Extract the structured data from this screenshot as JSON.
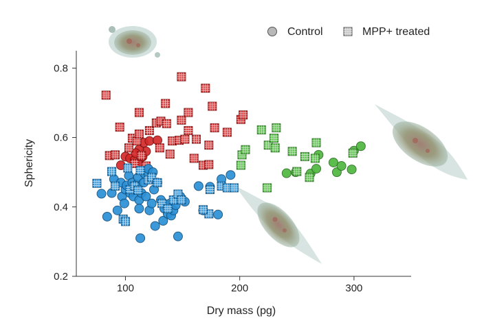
{
  "chart_data": {
    "type": "scatter",
    "title": "",
    "xlabel": "Dry mass (pg)",
    "ylabel": "Sphericity",
    "xlim": [
      57,
      350
    ],
    "ylim": [
      0.2,
      0.85
    ],
    "xticks": [
      100,
      200,
      300
    ],
    "yticks": [
      0.2,
      0.4,
      0.6,
      0.8
    ],
    "xtick_labels": [
      "100",
      "200",
      "300"
    ],
    "ytick_labels": [
      "0.2",
      "0.4",
      "0.6",
      "0.8"
    ],
    "grid": false,
    "legend": {
      "position": "top-right",
      "entries": [
        {
          "label": "Control",
          "marker": "circle"
        },
        {
          "label": "MPP+ treated",
          "marker": "hatched-square"
        }
      ]
    },
    "colors": {
      "red": "#d42a2a",
      "blue": "#2b90d6",
      "green": "#4fb83f",
      "legend_gray": "#b8b8b8"
    },
    "series": [
      {
        "name": "Control (red cluster)",
        "marker": "circle",
        "color": "red",
        "points": [
          [
            100,
            0.545
          ],
          [
            104,
            0.54
          ],
          [
            108,
            0.535
          ],
          [
            112,
            0.528
          ],
          [
            115,
            0.545
          ],
          [
            118,
            0.56
          ],
          [
            112,
            0.565
          ],
          [
            116,
            0.585
          ],
          [
            121,
            0.59
          ],
          [
            128,
            0.592
          ],
          [
            109,
            0.555
          ],
          [
            96,
            0.52
          ]
        ]
      },
      {
        "name": "MPP+ treated (red cluster)",
        "marker": "square",
        "color": "red",
        "points": [
          [
            83,
            0.722
          ],
          [
            86,
            0.548
          ],
          [
            91,
            0.55
          ],
          [
            95,
            0.63
          ],
          [
            103,
            0.57
          ],
          [
            106,
            0.598
          ],
          [
            110,
            0.59
          ],
          [
            108,
            0.525
          ],
          [
            112,
            0.672
          ],
          [
            112,
            0.61
          ],
          [
            114,
            0.548
          ],
          [
            118,
            0.518
          ],
          [
            121,
            0.62
          ],
          [
            127,
            0.642
          ],
          [
            130,
            0.57
          ],
          [
            131,
            0.647
          ],
          [
            135,
            0.698
          ],
          [
            136,
            0.64
          ],
          [
            141,
            0.59
          ],
          [
            139,
            0.552
          ],
          [
            147,
            0.592
          ],
          [
            152,
            0.595
          ],
          [
            149,
            0.65
          ],
          [
            149,
            0.775
          ],
          [
            155,
            0.62
          ],
          [
            155,
            0.672
          ],
          [
            160,
            0.54
          ],
          [
            162,
            0.595
          ],
          [
            168,
            0.52
          ],
          [
            173,
            0.522
          ],
          [
            170,
            0.742
          ],
          [
            173,
            0.578
          ],
          [
            176,
            0.69
          ],
          [
            178,
            0.628
          ],
          [
            189,
            0.615
          ],
          [
            201,
            0.652
          ],
          [
            203,
            0.665
          ]
        ]
      },
      {
        "name": "Control (blue cluster)",
        "marker": "circle",
        "color": "blue",
        "points": [
          [
            79,
            0.438
          ],
          [
            84,
            0.372
          ],
          [
            88,
            0.44
          ],
          [
            90,
            0.48
          ],
          [
            93,
            0.39
          ],
          [
            96,
            0.47
          ],
          [
            97,
            0.43
          ],
          [
            99,
            0.41
          ],
          [
            100,
            0.45
          ],
          [
            101,
            0.462
          ],
          [
            103,
            0.49
          ],
          [
            104,
            0.44
          ],
          [
            106,
            0.47
          ],
          [
            107,
            0.43
          ],
          [
            108,
            0.45
          ],
          [
            110,
            0.465
          ],
          [
            111,
            0.485
          ],
          [
            112,
            0.42
          ],
          [
            112,
            0.395
          ],
          [
            113,
            0.31
          ],
          [
            114,
            0.44
          ],
          [
            116,
            0.47
          ],
          [
            117,
            0.495
          ],
          [
            118,
            0.43
          ],
          [
            120,
            0.51
          ],
          [
            121,
            0.39
          ],
          [
            123,
            0.41
          ],
          [
            124,
            0.5
          ],
          [
            125,
            0.45
          ],
          [
            126,
            0.345
          ],
          [
            128,
            0.47
          ],
          [
            131,
            0.42
          ],
          [
            133,
            0.36
          ],
          [
            134,
            0.395
          ],
          [
            136,
            0.405
          ],
          [
            137,
            0.38
          ],
          [
            139,
            0.41
          ],
          [
            140,
            0.375
          ],
          [
            142,
            0.39
          ],
          [
            143,
            0.42
          ],
          [
            144,
            0.405
          ],
          [
            146,
            0.315
          ],
          [
            148,
            0.43
          ],
          [
            152,
            0.415
          ],
          [
            164,
            0.46
          ],
          [
            168,
            0.39
          ],
          [
            174,
            0.458
          ],
          [
            181,
            0.378
          ],
          [
            184,
            0.48
          ],
          [
            192,
            0.492
          ]
        ]
      },
      {
        "name": "MPP+ treated (blue cluster)",
        "marker": "square",
        "color": "blue",
        "points": [
          [
            75,
            0.468
          ],
          [
            88,
            0.502
          ],
          [
            91,
            0.46
          ],
          [
            98,
            0.365
          ],
          [
            100,
            0.358
          ],
          [
            102,
            0.512
          ],
          [
            104,
            0.45
          ],
          [
            108,
            0.46
          ],
          [
            111,
            0.448
          ],
          [
            113,
            0.505
          ],
          [
            120,
            0.478
          ],
          [
            123,
            0.485
          ],
          [
            128,
            0.47
          ],
          [
            132,
            0.41
          ],
          [
            137,
            0.395
          ],
          [
            142,
            0.42
          ],
          [
            146,
            0.437
          ],
          [
            149,
            0.42
          ],
          [
            174,
            0.45
          ],
          [
            184,
            0.46
          ],
          [
            189,
            0.455
          ],
          [
            195,
            0.455
          ],
          [
            173,
            0.38
          ],
          [
            168,
            0.392
          ]
        ]
      },
      {
        "name": "Control (green cluster)",
        "marker": "circle",
        "color": "green",
        "points": [
          [
            241,
            0.497
          ],
          [
            249,
            0.5
          ],
          [
            262,
            0.496
          ],
          [
            267,
            0.51
          ],
          [
            269,
            0.55
          ],
          [
            282,
            0.528
          ],
          [
            285,
            0.5
          ],
          [
            289,
            0.518
          ],
          [
            298,
            0.508
          ],
          [
            300,
            0.562
          ],
          [
            306,
            0.575
          ]
        ]
      },
      {
        "name": "MPP+ treated (green cluster)",
        "marker": "square",
        "color": "green",
        "points": [
          [
            201,
            0.52
          ],
          [
            202,
            0.55
          ],
          [
            205,
            0.565
          ],
          [
            219,
            0.622
          ],
          [
            224,
            0.455
          ],
          [
            225,
            0.578
          ],
          [
            230,
            0.598
          ],
          [
            231,
            0.57
          ],
          [
            232,
            0.628
          ],
          [
            246,
            0.56
          ],
          [
            250,
            0.502
          ],
          [
            257,
            0.545
          ],
          [
            261,
            0.485
          ],
          [
            266,
            0.54
          ],
          [
            267,
            0.585
          ],
          [
            299,
            0.555
          ]
        ]
      }
    ]
  }
}
